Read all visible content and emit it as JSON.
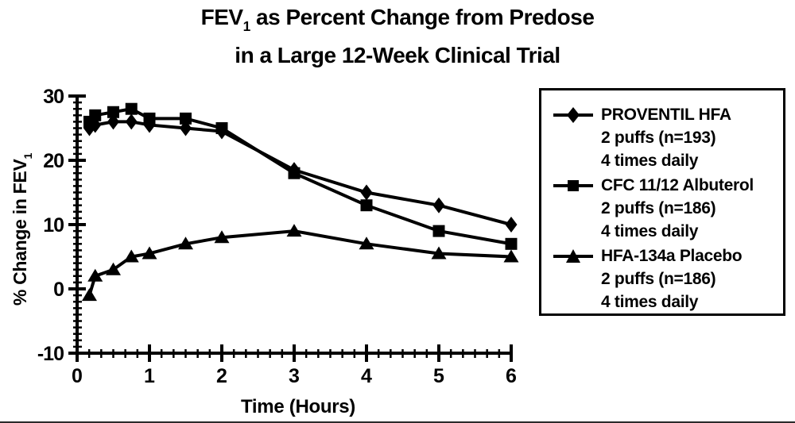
{
  "chart_data": {
    "type": "line",
    "title": {
      "pre": "FEV",
      "sub": "1",
      "rest": " as Percent Change from Predose",
      "line2": "in a Large 12-Week Clinical Trial"
    },
    "xlabel": "Time (Hours)",
    "ylabel": {
      "pre": "% Change in FEV",
      "sub": "1"
    },
    "xlim": [
      0,
      6
    ],
    "ylim": [
      -10,
      30
    ],
    "x_major_ticks": [
      0,
      1,
      2,
      3,
      4,
      5,
      6
    ],
    "x_minor_per_hour": 6,
    "y_major_ticks": [
      -10,
      0,
      10,
      20,
      30
    ],
    "y_minor_step": 1,
    "grid": false,
    "legend_position": "right",
    "ink_color": "#000000",
    "background_color": "#ffffff",
    "x": [
      0.17,
      0.25,
      0.5,
      0.75,
      1,
      1.5,
      2,
      3,
      4,
      5,
      6
    ],
    "series": [
      {
        "name": "PROVENTIL HFA",
        "line2": "2 puffs (n=193)",
        "line3": "4 times daily",
        "marker": "diamond",
        "values": [
          25,
          25.5,
          26,
          26,
          25.5,
          25,
          24.5,
          18.5,
          15,
          13,
          10
        ]
      },
      {
        "name": "CFC 11/12 Albuterol",
        "line2": "2 puffs (n=186)",
        "line3": "4 times daily",
        "marker": "square",
        "values": [
          26,
          27,
          27.5,
          28,
          26.5,
          26.5,
          25,
          18,
          13,
          9,
          7
        ]
      },
      {
        "name": "HFA-134a Placebo",
        "line2": "2 puffs (n=186)",
        "line3": "4 times daily",
        "marker": "triangle",
        "values": [
          -1,
          2,
          3,
          5,
          5.5,
          7,
          8,
          9,
          7,
          5.5,
          5
        ]
      }
    ]
  }
}
